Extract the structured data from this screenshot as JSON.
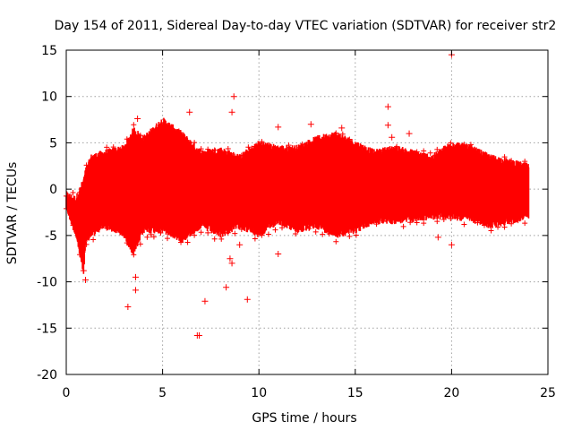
{
  "chart_data": {
    "type": "scatter",
    "title": "Day 154 of 2011, Sidereal Day-to-day VTEC variation (SDTVAR) for receiver str2",
    "xlabel": "GPS time / hours",
    "ylabel": "SDTVAR / TECUs",
    "xlim": [
      0,
      25
    ],
    "ylim": [
      -20,
      15
    ],
    "xticks": [
      0,
      5,
      10,
      15,
      20,
      25
    ],
    "yticks": [
      -20,
      -15,
      -10,
      -5,
      0,
      5,
      10,
      15
    ],
    "grid": true,
    "marker": "plus",
    "color": "#ff0000",
    "envelope": {
      "description": "dense band of points; lower/upper bounds per hour",
      "x": [
        0,
        0.5,
        0.9,
        1.0,
        1.3,
        2,
        3,
        3.5,
        4,
        5,
        6,
        7,
        8,
        9,
        10,
        11,
        12,
        13,
        14,
        15,
        16,
        17,
        18,
        19,
        20,
        21,
        22,
        23,
        24
      ],
      "lower": [
        -1.5,
        -4.5,
        -8.5,
        -5.5,
        -4.5,
        -3.5,
        -4.5,
        -6.5,
        -4.0,
        -4.0,
        -5.0,
        -3.5,
        -4.5,
        -3.5,
        -4.5,
        -3.0,
        -4.0,
        -3.5,
        -4.5,
        -4.0,
        -3.0,
        -3.0,
        -2.8,
        -2.5,
        -2.5,
        -2.8,
        -3.5,
        -3.0,
        -2.5
      ],
      "upper": [
        -1.0,
        -1.5,
        0.5,
        1.5,
        3.0,
        3.5,
        4.0,
        6.0,
        5.0,
        7.0,
        5.5,
        3.5,
        3.8,
        3.0,
        4.5,
        4.0,
        4.0,
        5.0,
        5.5,
        4.5,
        3.5,
        4.0,
        3.5,
        3.0,
        4.5,
        4.0,
        3.0,
        2.5,
        2.0
      ]
    },
    "outliers": [
      {
        "x": 20.0,
        "y": 14.5
      },
      {
        "x": 8.7,
        "y": 10.0
      },
      {
        "x": 8.6,
        "y": 8.3
      },
      {
        "x": 6.4,
        "y": 8.3
      },
      {
        "x": 16.7,
        "y": 8.9
      },
      {
        "x": 16.7,
        "y": 6.9
      },
      {
        "x": 3.7,
        "y": 7.6
      },
      {
        "x": 11.0,
        "y": 6.7
      },
      {
        "x": 14.3,
        "y": 6.6
      },
      {
        "x": 17.8,
        "y": 6.0
      },
      {
        "x": 12.7,
        "y": 7.0
      },
      {
        "x": 16.9,
        "y": 5.6
      },
      {
        "x": 20.0,
        "y": -6.0
      },
      {
        "x": 19.3,
        "y": -5.2
      },
      {
        "x": 11.0,
        "y": -7.0
      },
      {
        "x": 8.5,
        "y": -7.5
      },
      {
        "x": 8.6,
        "y": -8.0
      },
      {
        "x": 3.6,
        "y": -9.5
      },
      {
        "x": 3.6,
        "y": -10.9
      },
      {
        "x": 8.3,
        "y": -10.6
      },
      {
        "x": 9.4,
        "y": -11.9
      },
      {
        "x": 7.2,
        "y": -12.1
      },
      {
        "x": 3.2,
        "y": -12.7
      },
      {
        "x": 6.8,
        "y": -15.8
      },
      {
        "x": 6.9,
        "y": -15.8
      },
      {
        "x": 4.4,
        "y": -4.9
      },
      {
        "x": 5.3,
        "y": -4.5
      },
      {
        "x": 9.0,
        "y": -6.0
      },
      {
        "x": 1.0,
        "y": -9.8
      },
      {
        "x": 0.9,
        "y": -8.8
      }
    ]
  }
}
